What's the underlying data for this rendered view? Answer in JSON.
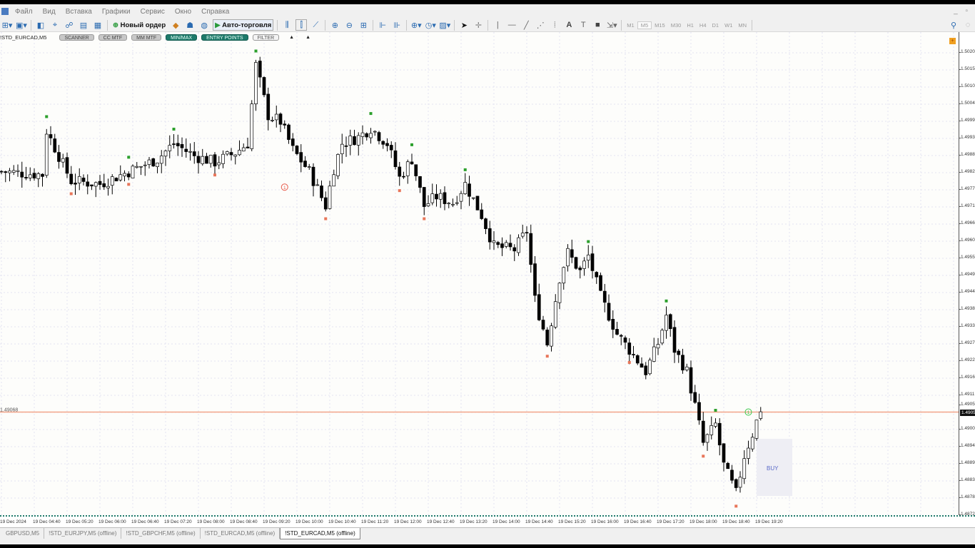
{
  "menu": {
    "items": [
      "Файл",
      "Вид",
      "Вставка",
      "Графики",
      "Сервис",
      "Окно",
      "Справка"
    ],
    "window_controls": "_ ▫"
  },
  "toolbar": {
    "new_order": "Новый ордер",
    "auto_trading": "Авто-торговля",
    "timeframes": [
      "M1",
      "M5",
      "M15",
      "M30",
      "H1",
      "H4",
      "D1",
      "W1",
      "MN"
    ],
    "active_timeframe": "M5"
  },
  "chart": {
    "symbol_label": "!STD_EURCAD,M5",
    "buttons": [
      {
        "label": "SCANNER",
        "style": "gray"
      },
      {
        "label": "CC MTF",
        "style": "gray"
      },
      {
        "label": "MM MTF",
        "style": "gray"
      },
      {
        "label": "MIN/MAX",
        "style": "green"
      },
      {
        "label": "ENTRY POINTS",
        "style": "green"
      },
      {
        "label": "FILTER",
        "style": "white"
      }
    ],
    "arrows": [
      "▲",
      "▲"
    ],
    "buy_label": "BUY",
    "left_price_label": "1.49068",
    "signal_marks": [
      "1",
      "1"
    ],
    "current_price": "1.4905",
    "colors": {
      "bid_line": "#f4a58a",
      "high_marker": "#2ca02c",
      "low_marker": "#e8765a",
      "buy_box": "#eeeef4",
      "buy_text": "#5a6ac8",
      "signal_sell": "#e85a4a",
      "signal_buy": "#3ac84a",
      "bull_body": "#ffffff",
      "bear_body": "#000000"
    }
  },
  "price_axis": {
    "labels": [
      "1.5020",
      "1.5015",
      "1.5010",
      "1.5004",
      "1.4999",
      "1.4993",
      "1.4988",
      "1.4982",
      "1.4977",
      "1.4971",
      "1.4966",
      "1.4960",
      "1.4955",
      "1.4949",
      "1.4944",
      "1.4938",
      "1.4933",
      "1.4927",
      "1.4922",
      "1.4916",
      "1.4911",
      "1.4905",
      "1.4900",
      "1.4894",
      "1.4889",
      "1.4883",
      "1.4878",
      "1.4872"
    ]
  },
  "time_axis": {
    "labels": [
      "19 Dec 2024",
      "19 Dec 04:40",
      "19 Dec 05:20",
      "19 Dec 06:00",
      "19 Dec 06:40",
      "19 Dec 07:20",
      "19 Dec 08:00",
      "19 Dec 08:40",
      "19 Dec 09:20",
      "19 Dec 10:00",
      "19 Dec 10:40",
      "19 Dec 11:20",
      "19 Dec 12:00",
      "19 Dec 12:40",
      "19 Dec 13:20",
      "19 Dec 14:00",
      "19 Dec 14:40",
      "19 Dec 15:20",
      "19 Dec 16:00",
      "19 Dec 16:40",
      "19 Dec 17:20",
      "19 Dec 18:00",
      "19 Dec 18:40",
      "19 Dec 19:20"
    ]
  },
  "tabs": [
    {
      "label": "GBPUSD,M5"
    },
    {
      "label": "!STD_EURJPY,M5 (offline)"
    },
    {
      "label": "!STD_GBPCHF,M5 (offline)"
    },
    {
      "label": "!STD_EURCAD,M5 (offline)"
    },
    {
      "label": "!STD_EURCAD,M5 (offline)",
      "active": true
    }
  ],
  "chart_data": {
    "type": "candlestick",
    "symbol": "EURCAD",
    "timeframe": "M5",
    "ylim": [
      1.4872,
      1.502
    ],
    "approx_close_path": [
      [
        "04:00",
        1.4982
      ],
      [
        "04:50",
        1.4981
      ],
      [
        "04:55",
        1.4995
      ],
      [
        "05:25",
        1.4979
      ],
      [
        "06:00",
        1.4978
      ],
      [
        "06:35",
        1.4982
      ],
      [
        "07:10",
        1.4986
      ],
      [
        "07:30",
        1.4991
      ],
      [
        "07:55",
        1.4987
      ],
      [
        "08:20",
        1.4985
      ],
      [
        "08:45",
        1.4988
      ],
      [
        "09:00",
        1.4991
      ],
      [
        "09:10",
        1.5016
      ],
      [
        "09:25",
        1.5
      ],
      [
        "09:40",
        1.4998
      ],
      [
        "09:55",
        1.4989
      ],
      [
        "10:15",
        1.4982
      ],
      [
        "10:35",
        1.4971
      ],
      [
        "10:45",
        1.4983
      ],
      [
        "10:55",
        1.4991
      ],
      [
        "11:15",
        1.4993
      ],
      [
        "11:30",
        1.4996
      ],
      [
        "11:50",
        1.4991
      ],
      [
        "12:05",
        1.498
      ],
      [
        "12:20",
        1.4986
      ],
      [
        "12:35",
        1.4971
      ],
      [
        "12:50",
        1.4974
      ],
      [
        "13:10",
        1.4972
      ],
      [
        "13:25",
        1.4978
      ],
      [
        "13:45",
        1.4968
      ],
      [
        "14:00",
        1.4958
      ],
      [
        "14:25",
        1.4957
      ],
      [
        "14:40",
        1.4963
      ],
      [
        "14:50",
        1.4941
      ],
      [
        "15:05",
        1.4927
      ],
      [
        "15:20",
        1.4948
      ],
      [
        "15:30",
        1.4956
      ],
      [
        "15:45",
        1.495
      ],
      [
        "15:55",
        1.4955
      ],
      [
        "16:10",
        1.4942
      ],
      [
        "16:30",
        1.493
      ],
      [
        "16:45",
        1.4925
      ],
      [
        "17:05",
        1.4918
      ],
      [
        "17:20",
        1.4927
      ],
      [
        "17:30",
        1.4936
      ],
      [
        "17:40",
        1.4925
      ],
      [
        "17:55",
        1.4918
      ],
      [
        "18:05",
        1.4907
      ],
      [
        "18:15",
        1.4895
      ],
      [
        "18:30",
        1.4901
      ],
      [
        "18:40",
        1.4888
      ],
      [
        "18:55",
        1.4879
      ],
      [
        "19:05",
        1.4891
      ],
      [
        "19:15",
        1.4898
      ],
      [
        "19:25",
        1.4906
      ]
    ],
    "high_markers": [
      "04:55",
      "06:35",
      "07:30",
      "09:10",
      "11:30",
      "12:20",
      "13:25",
      "15:55",
      "17:30",
      "18:30"
    ],
    "low_markers": [
      "05:25",
      "06:35",
      "08:20",
      "10:35",
      "12:05",
      "12:35",
      "15:05",
      "16:45",
      "18:15",
      "18:55"
    ],
    "signals": [
      {
        "time": "09:45",
        "price": 1.4977,
        "label": "1",
        "type": "sell"
      },
      {
        "time": "19:10",
        "price": 1.4905,
        "label": "1",
        "type": "buy"
      }
    ]
  }
}
